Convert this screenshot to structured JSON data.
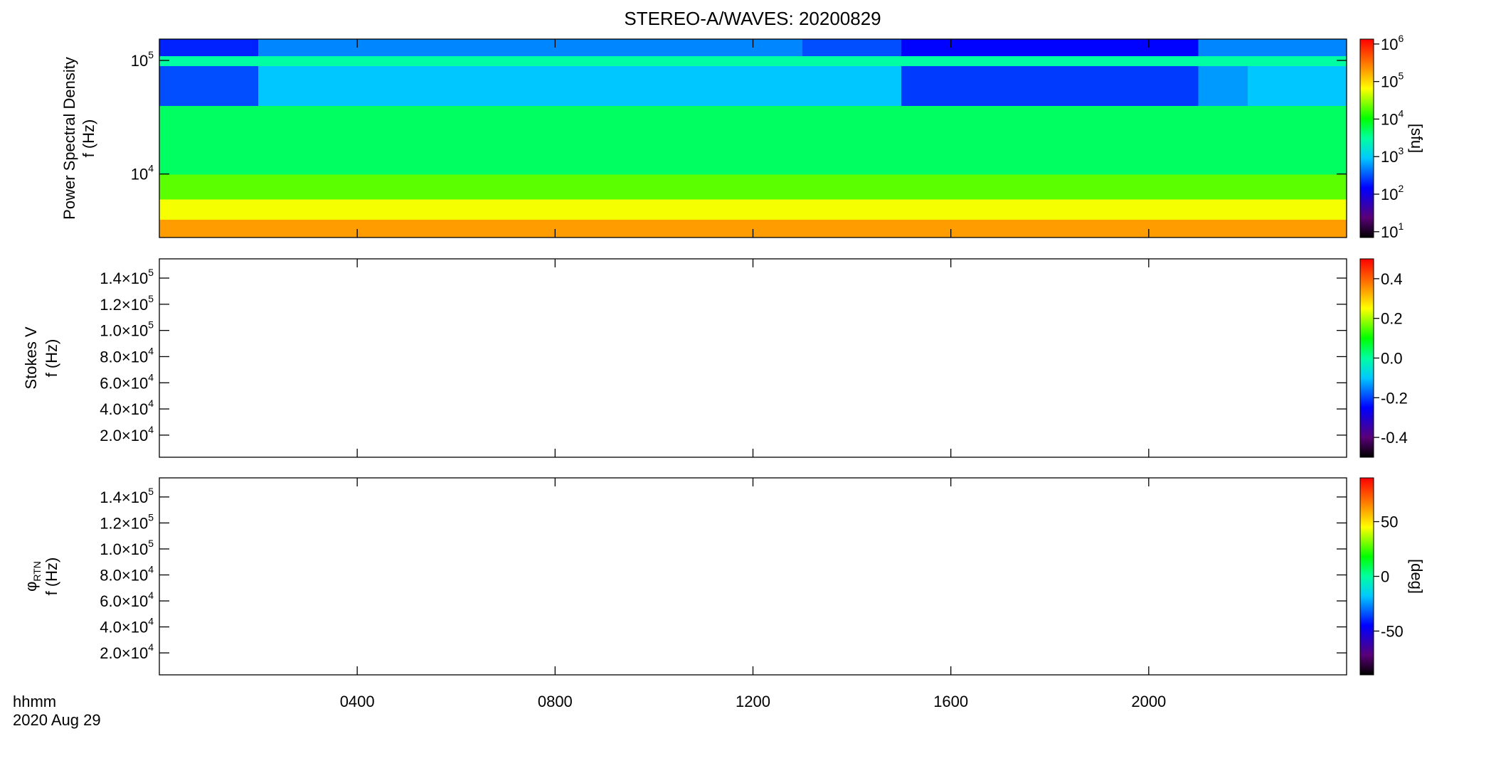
{
  "chart_data": [
    {
      "type": "heatmap",
      "title": "STEREO-A/WAVES: 20200829",
      "ylabel": [
        "Power Spectral Density",
        "f (Hz)"
      ],
      "ylog": true,
      "ylim": [
        2760,
        154000
      ],
      "yticks": [
        {
          "value": 10000,
          "label": "10",
          "exponent": "4"
        },
        {
          "value": 100000,
          "label": "10",
          "exponent": "5"
        }
      ],
      "xlim": [
        0,
        24
      ],
      "xticks": [
        4,
        8,
        12,
        16,
        20
      ],
      "xbins": [
        0,
        1,
        2,
        3,
        4,
        5,
        6,
        7,
        8,
        9,
        10,
        11,
        12,
        13,
        14,
        15,
        16,
        17,
        18,
        19,
        20,
        21,
        22,
        23,
        24
      ],
      "ybins": [
        2760,
        4000,
        6000,
        10000,
        40000,
        90000,
        110000,
        154000
      ],
      "z": [
        [
          200000,
          200000,
          200000,
          200000,
          200000,
          200000,
          200000,
          200000,
          200000,
          200000,
          200000,
          200000,
          200000,
          200000,
          200000,
          200000,
          200000,
          200000,
          200000,
          200000,
          200000,
          200000,
          200000,
          200000
        ],
        [
          60000,
          60000,
          60000,
          60000,
          60000,
          60000,
          60000,
          60000,
          60000,
          60000,
          60000,
          60000,
          60000,
          60000,
          60000,
          60000,
          60000,
          60000,
          60000,
          60000,
          60000,
          60000,
          60000,
          60000
        ],
        [
          20000,
          20000,
          20000,
          20000,
          20000,
          20000,
          20000,
          20000,
          20000,
          20000,
          20000,
          20000,
          20000,
          20000,
          20000,
          20000,
          20000,
          20000,
          20000,
          20000,
          20000,
          20000,
          20000,
          20000
        ],
        [
          5000,
          5000,
          5000,
          5000,
          5000,
          5000,
          5000,
          5000,
          5000,
          5000,
          5000,
          5000,
          5000,
          5000,
          5000,
          5000,
          5000,
          5000,
          5000,
          5000,
          5000,
          5000,
          5000,
          5000
        ],
        [
          300,
          300,
          900,
          900,
          900,
          900,
          900,
          900,
          900,
          900,
          900,
          900,
          900,
          900,
          900,
          250,
          250,
          250,
          250,
          250,
          250,
          600,
          900,
          900
        ],
        [
          3000,
          3000,
          3000,
          3000,
          3000,
          3000,
          3000,
          3000,
          3000,
          3000,
          3000,
          3000,
          3000,
          3000,
          3000,
          3000,
          3000,
          3000,
          3000,
          3000,
          3000,
          3000,
          3000,
          3000
        ],
        [
          200,
          200,
          500,
          500,
          500,
          500,
          500,
          500,
          500,
          500,
          500,
          500,
          500,
          300,
          300,
          150,
          150,
          150,
          150,
          150,
          150,
          500,
          500,
          500
        ]
      ],
      "zlog": true,
      "zlim": [
        7,
        1350000
      ],
      "zticks": [
        {
          "value": 10,
          "label": "10",
          "exponent": "1"
        },
        {
          "value": 100,
          "label": "10",
          "exponent": "2"
        },
        {
          "value": 1000,
          "label": "10",
          "exponent": "3"
        },
        {
          "value": 10000,
          "label": "10",
          "exponent": "4"
        },
        {
          "value": 100000,
          "label": "10",
          "exponent": "5"
        },
        {
          "value": 1000000,
          "label": "10",
          "exponent": "6"
        }
      ],
      "zlabel": "[sfu]"
    },
    {
      "type": "heatmap",
      "ylabel": [
        "Stokes V",
        "f (Hz)"
      ],
      "ylog": false,
      "ylim": [
        3100,
        154700
      ],
      "yticks": [
        {
          "value": 20000,
          "label": "2.0×10",
          "exponent": "4"
        },
        {
          "value": 40000,
          "label": "4.0×10",
          "exponent": "4"
        },
        {
          "value": 60000,
          "label": "6.0×10",
          "exponent": "4"
        },
        {
          "value": 80000,
          "label": "8.0×10",
          "exponent": "4"
        },
        {
          "value": 100000,
          "label": "1.0×10",
          "exponent": "5"
        },
        {
          "value": 120000,
          "label": "1.2×10",
          "exponent": "5"
        },
        {
          "value": 140000,
          "label": "1.4×10",
          "exponent": "5"
        }
      ],
      "xlim": [
        0,
        24
      ],
      "xticks": [
        4,
        8,
        12,
        16,
        20
      ],
      "zlog": false,
      "zlim": [
        -0.5,
        0.5
      ],
      "zticks": [
        -0.4,
        -0.2,
        {
          "value": 0,
          "label": "0.0"
        },
        0.2,
        0.4
      ]
    },
    {
      "type": "heatmap",
      "ylabel": [
        "φ",
        "f (Hz)"
      ],
      "ylabel_sub": "RTN",
      "ylog": false,
      "ylim": [
        3100,
        154700
      ],
      "yticks": [
        {
          "value": 20000,
          "label": "2.0×10",
          "exponent": "4"
        },
        {
          "value": 40000,
          "label": "4.0×10",
          "exponent": "4"
        },
        {
          "value": 60000,
          "label": "6.0×10",
          "exponent": "4"
        },
        {
          "value": 80000,
          "label": "8.0×10",
          "exponent": "4"
        },
        {
          "value": 100000,
          "label": "1.0×10",
          "exponent": "5"
        },
        {
          "value": 120000,
          "label": "1.2×10",
          "exponent": "5"
        },
        {
          "value": 140000,
          "label": "1.4×10",
          "exponent": "5"
        }
      ],
      "xlim": [
        0,
        24
      ],
      "xticks": [
        {
          "value": 4,
          "label": "0400"
        },
        {
          "value": 8,
          "label": "0800"
        },
        {
          "value": 12,
          "label": "1200"
        },
        {
          "value": 16,
          "label": "1600"
        },
        {
          "value": 20,
          "label": "2000"
        }
      ],
      "xlabel": [
        "hhmm",
        "2020 Aug 29"
      ],
      "zlog": false,
      "zlim": [
        -90,
        90
      ],
      "zticks": [
        -50,
        0,
        50
      ],
      "zlabel": "[deg]"
    }
  ]
}
